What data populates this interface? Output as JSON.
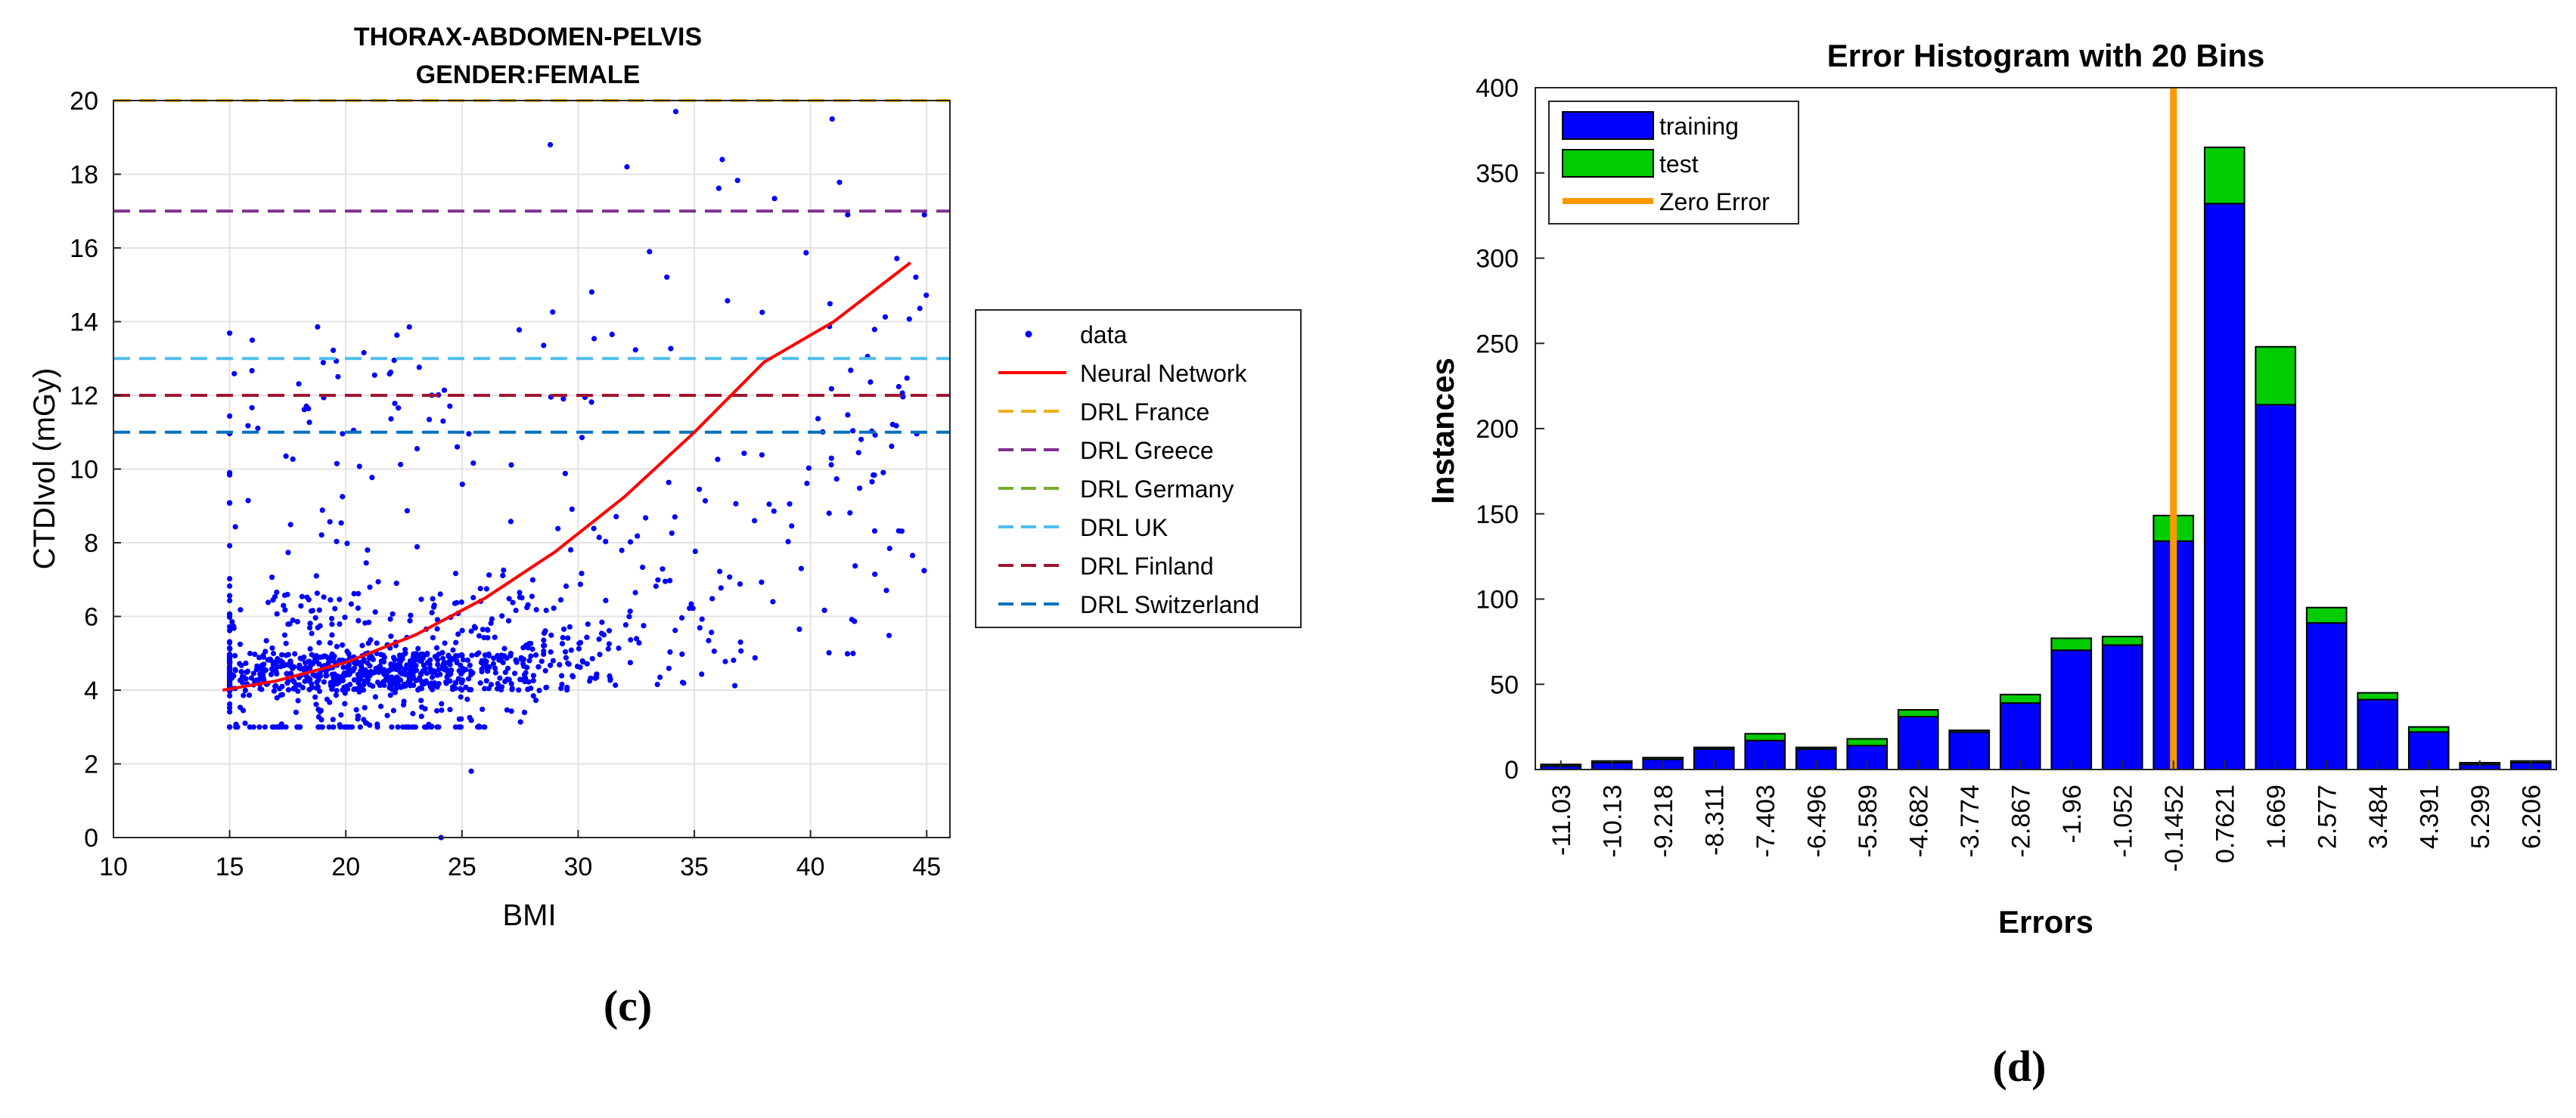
{
  "figure": {
    "panel_c_label": "(c)",
    "panel_d_label": "(d)"
  },
  "chart_data": [
    {
      "type": "scatter",
      "title": "THORAX-ABDOMEN-PELVIS",
      "subtitle": "GENDER:FEMALE",
      "xlabel": "BMI",
      "ylabel": "CTDIvol (mGy)",
      "xlim": [
        10,
        46
      ],
      "ylim": [
        0,
        20
      ],
      "xticks": [
        10,
        15,
        20,
        25,
        30,
        35,
        40,
        45
      ],
      "yticks": [
        0,
        2,
        4,
        6,
        8,
        10,
        12,
        14,
        16,
        18,
        20
      ],
      "grid": true,
      "legend_placement": "outside-right",
      "series": [
        {
          "name": "data",
          "kind": "points",
          "color": "#0000ff",
          "cluster_summary": [
            {
              "x_range": [
                15,
                45
              ],
              "y_range": [
                1.8,
                19.8
              ],
              "densest": {
                "x": [
                  21,
                  31
                ],
                "y": [
                  4,
                  8
                ]
              }
            }
          ],
          "outliers": [
            [
              24.1,
              0.0
            ],
            [
              25.4,
              1.8
            ],
            [
              34.2,
              19.7
            ],
            [
              36.2,
              18.4
            ],
            [
              28.8,
              18.8
            ],
            [
              32.1,
              18.2
            ],
            [
              39.6,
              7.3
            ],
            [
              40.8,
              8.8
            ],
            [
              44.9,
              16.9
            ],
            [
              41.6,
              16.9
            ]
          ]
        },
        {
          "name": "Neural Network",
          "kind": "line",
          "color": "#ff0000",
          "x": [
            14.7,
            17,
            20,
            23,
            26,
            29,
            32,
            35,
            38,
            41,
            44.3
          ],
          "y": [
            4.0,
            4.25,
            4.75,
            5.5,
            6.5,
            7.75,
            9.25,
            11.0,
            12.9,
            14.0,
            15.6
          ]
        },
        {
          "name": "DRL France",
          "kind": "hline",
          "style": "dashed",
          "color": "#edb120",
          "y": 20
        },
        {
          "name": "DRL Greece",
          "kind": "hline",
          "style": "dashed",
          "color": "#7e2f8e",
          "y": 17
        },
        {
          "name": "DRL Germany",
          "kind": "hline",
          "style": "dashed",
          "color": "#77ac30",
          "y": null
        },
        {
          "name": "DRL UK",
          "kind": "hline",
          "style": "dashed",
          "color": "#4dbeee",
          "y": 13
        },
        {
          "name": "DRL Finland",
          "kind": "hline",
          "style": "dashed",
          "color": "#a2142f",
          "y": 12
        },
        {
          "name": "DRL Switzerland",
          "kind": "hline",
          "style": "dashed",
          "color": "#0072bd",
          "y": 11
        }
      ]
    },
    {
      "type": "bar",
      "stacked": true,
      "title": "Error Histogram with 20 Bins",
      "xlabel": "Errors",
      "ylabel": "Instances",
      "ylim": [
        0,
        400
      ],
      "yticks": [
        0,
        50,
        100,
        150,
        200,
        250,
        300,
        350,
        400
      ],
      "legend_placement": "top-left",
      "categories": [
        "-11.03",
        "-10.13",
        "-9.218",
        "-8.311",
        "-7.403",
        "-6.496",
        "-5.589",
        "-4.682",
        "-3.774",
        "-2.867",
        "-1.96",
        "-1.052",
        "-0.1452",
        "0.7621",
        "1.669",
        "2.577",
        "3.484",
        "4.391",
        "5.299",
        "6.206"
      ],
      "series": [
        {
          "name": "training",
          "color": "#0000ff",
          "values": [
            2,
            4,
            6,
            12,
            17,
            12,
            14,
            31,
            22,
            39,
            70,
            73,
            134,
            332,
            214,
            86,
            41,
            22,
            3,
            4
          ]
        },
        {
          "name": "test",
          "color": "#00cc00",
          "values": [
            1,
            1,
            1,
            1,
            4,
            1,
            4,
            4,
            1,
            5,
            7,
            5,
            15,
            33,
            34,
            9,
            4,
            3,
            1,
            1
          ]
        }
      ],
      "reference_line": {
        "name": "Zero Error",
        "color": "#ff9900",
        "category": "-0.1452"
      }
    }
  ]
}
